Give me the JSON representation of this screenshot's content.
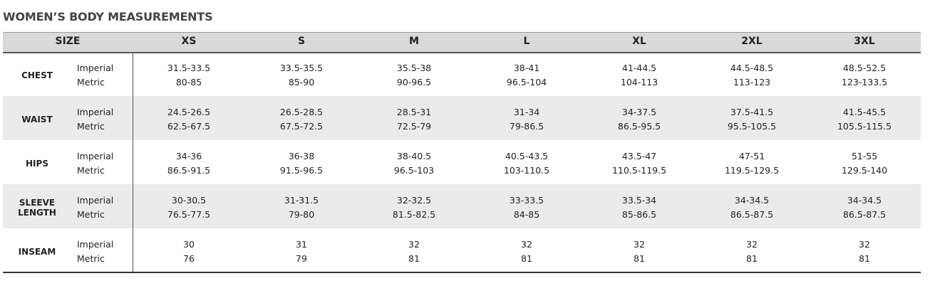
{
  "title": "WOMEN’S BODY MEASUREMENTS",
  "header": {
    "label": "SIZE",
    "sizes": [
      "XS",
      "S",
      "M",
      "L",
      "XL",
      "2XL",
      "3XL"
    ]
  },
  "rows": [
    {
      "label": "CHEST",
      "units": [
        "Imperial",
        "Metric"
      ],
      "imperial": [
        "31.5-33.5",
        "33.5-35.5",
        "35.5-38",
        "38-41",
        "41-44.5",
        "44.5-48.5",
        "48.5-52.5"
      ],
      "metric": [
        "80-85",
        "85-90",
        "90-96.5",
        "96.5-104",
        "104-113",
        "113-123",
        "123-133.5"
      ]
    },
    {
      "label": "WAIST",
      "units": [
        "Imperial",
        "Metric"
      ],
      "imperial": [
        "24.5-26.5",
        "26.5-28.5",
        "28.5-31",
        "31-34",
        "34-37.5",
        "37.5-41.5",
        "41.5-45.5"
      ],
      "metric": [
        "62.5-67.5",
        "67.5-72.5",
        "72.5-79",
        "79-86.5",
        "86.5-95.5",
        "95.5-105.5",
        "105.5-115.5"
      ]
    },
    {
      "label": "HIPS",
      "units": [
        "Imperial",
        "Metric"
      ],
      "imperial": [
        "34-36",
        "36-38",
        "38-40.5",
        "40.5-43.5",
        "43.5-47",
        "47-51",
        "51-55"
      ],
      "metric": [
        "86.5-91.5",
        "91.5-96.5",
        "96.5-103",
        "103-110.5",
        "110.5-119.5",
        "119.5-129.5",
        "129.5-140"
      ]
    },
    {
      "label": "SLEEVE LENGTH",
      "units": [
        "Imperial",
        "Metric"
      ],
      "imperial": [
        "30-30.5",
        "31-31.5",
        "32-32.5",
        "33-33.5",
        "33.5-34",
        "34-34.5",
        "34-34.5"
      ],
      "metric": [
        "76.5-77.5",
        "79-80",
        "81.5-82.5",
        "84-85",
        "85-86.5",
        "86.5-87.5",
        "86.5-87.5"
      ]
    },
    {
      "label": "INSEAM",
      "units": [
        "Imperial",
        "Metric"
      ],
      "imperial": [
        30,
        31,
        32,
        32,
        32,
        32,
        32
      ],
      "metric": [
        76,
        79,
        81,
        81,
        81,
        81,
        81
      ]
    }
  ]
}
